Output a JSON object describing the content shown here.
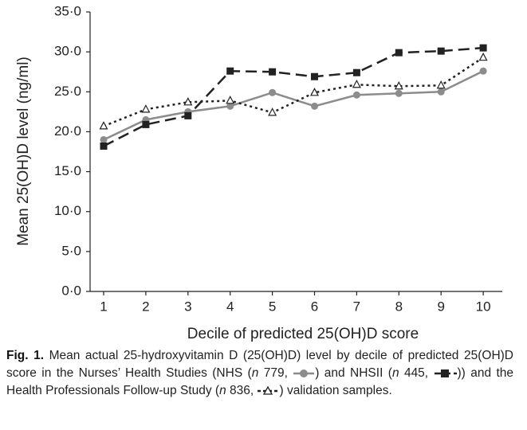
{
  "chart_data": {
    "type": "line",
    "x_label": "Decile of predicted 25(OH)D score",
    "y_label": "Mean 25(OH)D level (ng/ml)",
    "categories": [
      "1",
      "2",
      "3",
      "4",
      "5",
      "6",
      "7",
      "8",
      "9",
      "10"
    ],
    "series": [
      {
        "color": "#8c8c8c",
        "dash": "solid",
        "marker": "circle",
        "values": [
          19.0,
          21.5,
          22.5,
          23.2,
          24.9,
          23.2,
          24.6,
          24.8,
          25.0,
          27.6
        ]
      },
      {
        "color": "#222222",
        "dash": "dashed",
        "marker": "square",
        "values": [
          18.2,
          20.9,
          22.0,
          27.6,
          27.5,
          26.9,
          27.4,
          29.9,
          30.1,
          30.5
        ]
      },
      {
        "color": "#222222",
        "dash": "dotted",
        "marker": "triangle",
        "values": [
          20.7,
          22.8,
          23.7,
          23.9,
          22.4,
          24.9,
          25.9,
          25.7,
          25.8,
          29.3
        ]
      }
    ],
    "ylim": [
      0,
      35
    ],
    "yticks": [
      {
        "value": 0,
        "label": "0·0"
      },
      {
        "value": 5,
        "label": "5·0"
      },
      {
        "value": 10,
        "label": "10·0"
      },
      {
        "value": 15,
        "label": "15·0"
      },
      {
        "value": 20,
        "label": "20·0"
      },
      {
        "value": 25,
        "label": "25·0"
      },
      {
        "value": 30,
        "label": "30·0"
      },
      {
        "value": 35,
        "label": "35·0"
      }
    ],
    "figure_label": "Fig. 1.",
    "caption": [
      "Mean actual 25-hydroxyvitamin D (25(OH)D) level by decile of predicted 25(OH)D score in the Nurses’ Health Studies (NHS (",
      "n",
      " 779, ",
      ") and NHSII (",
      "n",
      " 445, ",
      ")) and the Health Professionals Follow-up Study (",
      "n",
      " 836, ",
      ") validation samples."
    ]
  }
}
